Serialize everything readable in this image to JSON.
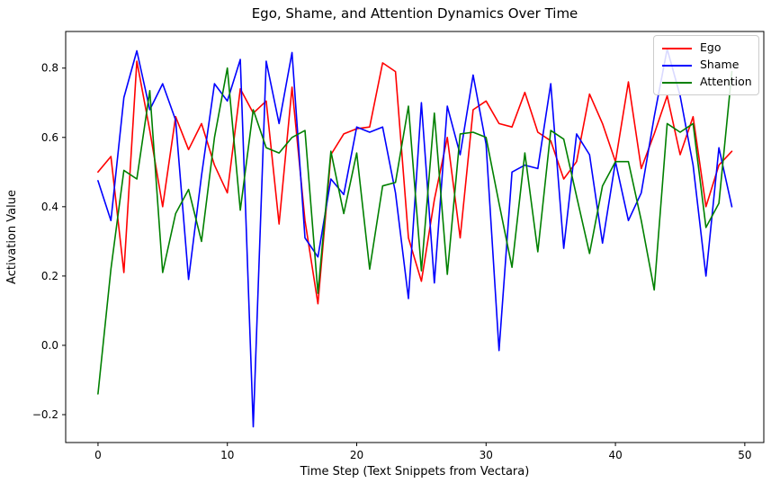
{
  "figure": {
    "title": "Ego, Shame, and Attention Dynamics Over Time",
    "xlabel": "Time Step (Text Snippets from Vectara)",
    "ylabel": "Activation Value"
  },
  "legend": {
    "entries": [
      {
        "label": "Ego",
        "color": "#ff0000"
      },
      {
        "label": "Shame",
        "color": "#0000ff"
      },
      {
        "label": "Attention",
        "color": "#008000"
      }
    ]
  },
  "chart_data": {
    "type": "line",
    "title": "Ego, Shame, and Attention Dynamics Over Time",
    "xlabel": "Time Step (Text Snippets from Vectara)",
    "ylabel": "Activation Value",
    "grid": false,
    "legend_position": "upper right",
    "x": [
      0,
      1,
      2,
      3,
      4,
      5,
      6,
      7,
      8,
      9,
      10,
      11,
      12,
      13,
      14,
      15,
      16,
      17,
      18,
      19,
      20,
      21,
      22,
      23,
      24,
      25,
      26,
      27,
      28,
      29,
      30,
      31,
      32,
      33,
      34,
      35,
      36,
      37,
      38,
      39,
      40,
      41,
      42,
      43,
      44,
      45,
      46,
      47,
      48,
      49
    ],
    "series": [
      {
        "name": "Ego",
        "color": "#ff0000",
        "values": [
          0.5,
          0.545,
          0.21,
          0.82,
          0.62,
          0.4,
          0.66,
          0.565,
          0.64,
          0.52,
          0.44,
          0.74,
          0.67,
          0.705,
          0.35,
          0.745,
          0.36,
          0.12,
          0.55,
          0.61,
          0.625,
          0.63,
          0.815,
          0.79,
          0.31,
          0.185,
          0.42,
          0.6,
          0.31,
          0.68,
          0.705,
          0.64,
          0.63,
          0.73,
          0.615,
          0.59,
          0.48,
          0.53,
          0.725,
          0.64,
          0.53,
          0.76,
          0.51,
          0.61,
          0.72,
          0.55,
          0.66,
          0.4,
          0.52,
          0.56
        ]
      },
      {
        "name": "Shame",
        "color": "#0000ff",
        "values": [
          0.475,
          0.36,
          0.715,
          0.85,
          0.68,
          0.755,
          0.65,
          0.19,
          0.49,
          0.755,
          0.705,
          0.825,
          -0.235,
          0.82,
          0.64,
          0.845,
          0.31,
          0.255,
          0.48,
          0.435,
          0.63,
          0.615,
          0.63,
          0.44,
          0.135,
          0.7,
          0.18,
          0.69,
          0.55,
          0.78,
          0.58,
          -0.015,
          0.5,
          0.52,
          0.51,
          0.755,
          0.28,
          0.61,
          0.55,
          0.295,
          0.53,
          0.36,
          0.44,
          0.66,
          0.855,
          0.72,
          0.52,
          0.2,
          0.57,
          0.4
        ]
      },
      {
        "name": "Attention",
        "color": "#008000",
        "values": [
          -0.14,
          0.22,
          0.505,
          0.48,
          0.735,
          0.21,
          0.38,
          0.45,
          0.3,
          0.6,
          0.8,
          0.39,
          0.68,
          0.57,
          0.555,
          0.6,
          0.62,
          0.15,
          0.56,
          0.38,
          0.555,
          0.22,
          0.46,
          0.47,
          0.69,
          0.215,
          0.67,
          0.205,
          0.61,
          0.615,
          0.6,
          0.41,
          0.225,
          0.555,
          0.27,
          0.62,
          0.595,
          0.43,
          0.265,
          0.46,
          0.53,
          0.53,
          0.36,
          0.16,
          0.64,
          0.615,
          0.64,
          0.34,
          0.41,
          0.79
        ]
      }
    ],
    "xlim": [
      -2.5,
      51.47
    ],
    "ylim": [
      -0.2805,
      0.9057
    ],
    "x_tick_values": [
      0,
      10,
      20,
      30,
      40,
      50
    ],
    "x_tick_labels": [
      "0",
      "10",
      "20",
      "30",
      "40",
      "50"
    ],
    "y_tick_values": [
      -0.2,
      0.0,
      0.2,
      0.4,
      0.6,
      0.8
    ],
    "y_tick_labels": [
      "−0.2",
      "0.0",
      "0.2",
      "0.4",
      "0.6",
      "0.8"
    ]
  }
}
